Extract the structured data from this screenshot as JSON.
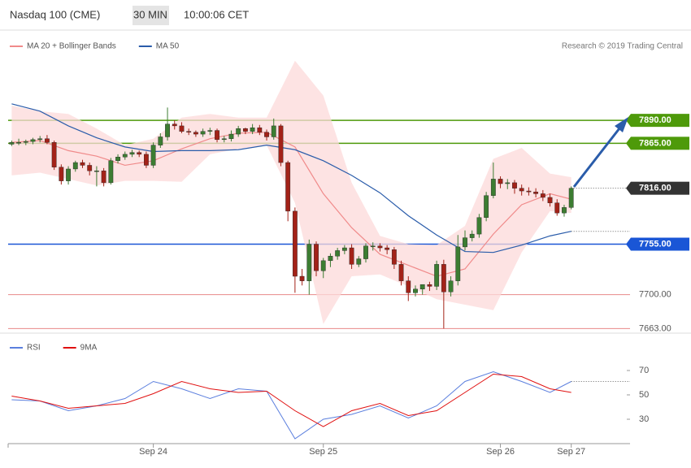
{
  "chart_data": [
    {
      "type": "candlestick",
      "title": "Nasdaq 100 (CME)",
      "timeframe": "30 MIN",
      "time": "10:00:06 CET",
      "credit": "Research © 2019 Trading Central",
      "up_color": "#3c7d32",
      "down_color": "#a32218",
      "xlim": [
        -0.5,
        87.3
      ],
      "ylim": [
        7658,
        7961
      ],
      "x": [
        0,
        1,
        2,
        3,
        4,
        5,
        6,
        7,
        8,
        9,
        10,
        11,
        12,
        13,
        14,
        15,
        16,
        17,
        18,
        19,
        20,
        21,
        22,
        23,
        24,
        25,
        26,
        27,
        28,
        29,
        30,
        31,
        32,
        33,
        34,
        35,
        36,
        37,
        38,
        39,
        40,
        41,
        42,
        43,
        44,
        45,
        46,
        47,
        48,
        49,
        50,
        51,
        52,
        53,
        54,
        55,
        56,
        57,
        58,
        59,
        60,
        61,
        62,
        63,
        64,
        65,
        66,
        67,
        68,
        69,
        70,
        71,
        72,
        73,
        74,
        75,
        76,
        77,
        78,
        79
      ],
      "open": [
        7864,
        7866,
        7866,
        7867,
        7869,
        7870,
        7866,
        7839,
        7824,
        7837,
        7844,
        7841,
        7835,
        7835,
        7822,
        7846,
        7850,
        7853,
        7855,
        7853,
        7841,
        7863,
        7872,
        7886,
        7884,
        7878,
        7877,
        7875,
        7878,
        7879,
        7869,
        7870,
        7875,
        7881,
        7878,
        7882,
        7877,
        7872,
        7884,
        7844,
        7791,
        7720,
        7715,
        7755,
        7726,
        7737,
        7742,
        7748,
        7751,
        7733,
        7739,
        7753,
        7753,
        7751,
        7749,
        7733,
        7715,
        7702,
        7706,
        7711,
        7709,
        7733,
        7703,
        7715,
        7752,
        7762,
        7766,
        7784,
        7808,
        7826,
        7821,
        7822,
        7816,
        7813,
        7812,
        7810,
        7806,
        7800,
        7789,
        7795
      ],
      "high": [
        7868,
        7870,
        7869,
        7871,
        7873,
        7874,
        7868,
        7842,
        7840,
        7846,
        7847,
        7844,
        7840,
        7838,
        7849,
        7853,
        7856,
        7858,
        7857,
        7856,
        7866,
        7876,
        7904,
        7890,
        7888,
        7881,
        7879,
        7881,
        7882,
        7881,
        7873,
        7879,
        7884,
        7882,
        7886,
        7885,
        7880,
        7892,
        7886,
        7846,
        7795,
        7728,
        7760,
        7758,
        7740,
        7745,
        7751,
        7754,
        7755,
        7742,
        7756,
        7757,
        7756,
        7754,
        7752,
        7737,
        7720,
        7710,
        7711,
        7714,
        7737,
        7738,
        7720,
        7765,
        7770,
        7770,
        7788,
        7812,
        7844,
        7829,
        7826,
        7825,
        7820,
        7817,
        7816,
        7814,
        7810,
        7804,
        7798,
        7818
      ],
      "low": [
        7862,
        7863,
        7863,
        7864,
        7866,
        7864,
        7836,
        7820,
        7820,
        7834,
        7838,
        7830,
        7818,
        7818,
        7820,
        7843,
        7847,
        7850,
        7850,
        7838,
        7838,
        7860,
        7868,
        7880,
        7876,
        7874,
        7872,
        7872,
        7874,
        7866,
        7866,
        7867,
        7872,
        7875,
        7875,
        7874,
        7868,
        7869,
        7840,
        7780,
        7702,
        7710,
        7700,
        7720,
        7718,
        7730,
        7738,
        7744,
        7728,
        7730,
        7735,
        7748,
        7747,
        7744,
        7728,
        7710,
        7693,
        7698,
        7700,
        7704,
        7705,
        7663,
        7698,
        7710,
        7748,
        7758,
        7762,
        7780,
        7805,
        7816,
        7815,
        7810,
        7808,
        7808,
        7806,
        7802,
        7796,
        7786,
        7785,
        7793
      ],
      "close": [
        7866,
        7866,
        7867,
        7869,
        7870,
        7866,
        7839,
        7824,
        7837,
        7844,
        7841,
        7835,
        7835,
        7822,
        7846,
        7850,
        7853,
        7855,
        7853,
        7841,
        7863,
        7872,
        7886,
        7884,
        7878,
        7877,
        7875,
        7878,
        7879,
        7869,
        7870,
        7875,
        7881,
        7878,
        7882,
        7877,
        7872,
        7884,
        7844,
        7791,
        7720,
        7715,
        7755,
        7726,
        7737,
        7742,
        7748,
        7751,
        7733,
        7739,
        7753,
        7753,
        7751,
        7749,
        7733,
        7715,
        7702,
        7706,
        7711,
        7709,
        7733,
        7703,
        7715,
        7752,
        7762,
        7766,
        7784,
        7808,
        7826,
        7821,
        7822,
        7816,
        7813,
        7812,
        7810,
        7806,
        7800,
        7789,
        7795,
        7816
      ],
      "series": [
        {
          "name": "MA 20 + Bollinger Bands",
          "color": "#f08a8a",
          "band_color": "#fcd9d9",
          "x": [
            0,
            4,
            8,
            12,
            16,
            20,
            24,
            28,
            32,
            36,
            40,
            44,
            48,
            52,
            56,
            60,
            64,
            68,
            72,
            76,
            79
          ],
          "values": [
            7866,
            7868,
            7857,
            7851,
            7841,
            7846,
            7859,
            7870,
            7876,
            7877,
            7861,
            7810,
            7773,
            7744,
            7732,
            7720,
            7728,
            7766,
            7798,
            7810,
            7804
          ],
          "upper": [
            7906,
            7900,
            7897,
            7881,
            7863,
            7870,
            7893,
            7897,
            7893,
            7893,
            7955,
            7917,
            7822,
            7764,
            7755,
            7754,
            7775,
            7848,
            7860,
            7832,
            7828
          ],
          "lower": [
            7830,
            7833,
            7826,
            7819,
            7824,
            7824,
            7823,
            7853,
            7859,
            7863,
            7800,
            7668,
            7720,
            7722,
            7709,
            7695,
            7689,
            7683,
            7746,
            7791,
            7789
          ]
        },
        {
          "name": "MA 50",
          "color": "#2a5caa",
          "x": [
            0,
            4,
            8,
            12,
            16,
            20,
            24,
            28,
            32,
            36,
            40,
            44,
            48,
            52,
            56,
            60,
            64,
            68,
            72,
            76,
            79
          ],
          "values": [
            7908,
            7900,
            7884,
            7871,
            7861,
            7856,
            7857,
            7857,
            7858,
            7863,
            7858,
            7846,
            7830,
            7811,
            7786,
            7765,
            7747,
            7746,
            7754,
            7764,
            7769
          ]
        }
      ],
      "levels": [
        {
          "value": 7890,
          "label": "7890.00",
          "color": "#4e9a0a",
          "style": "box"
        },
        {
          "value": 7865,
          "label": "7865.00",
          "color": "#4e9a0a",
          "style": "box"
        },
        {
          "value": 7816,
          "label": "7816.00",
          "color": "#333333",
          "style": "current"
        },
        {
          "value": 7755,
          "label": "7755.00",
          "color": "#1a56d6",
          "style": "box"
        },
        {
          "value": 7700,
          "label": "7700.00",
          "color": "#e88a8a",
          "style": "plain"
        },
        {
          "value": 7663,
          "label": "7663.00",
          "color": "#e88a8a",
          "style": "plain"
        }
      ]
    },
    {
      "type": "line",
      "xlim": [
        -0.5,
        87.3
      ],
      "ylim": [
        10,
        94
      ],
      "yticks": [
        70,
        50,
        30
      ],
      "xticks": [
        {
          "value": 20,
          "label": "Sep 24"
        },
        {
          "value": 44,
          "label": "Sep 25"
        },
        {
          "value": 69,
          "label": "Sep 26"
        },
        {
          "value": 79,
          "label": "Sep 27"
        }
      ],
      "series": [
        {
          "name": "RSI",
          "color": "#5b7fde",
          "x": [
            0,
            4,
            8,
            12,
            16,
            20,
            24,
            28,
            32,
            36,
            40,
            44,
            48,
            52,
            56,
            60,
            64,
            68,
            72,
            76,
            79
          ],
          "values": [
            46,
            45,
            37,
            41,
            47,
            61,
            55,
            47,
            55,
            53,
            14,
            30,
            34,
            41,
            31,
            41,
            61,
            69,
            61,
            52,
            61
          ]
        },
        {
          "name": "9MA",
          "color": "#e01010",
          "x": [
            0,
            4,
            8,
            12,
            16,
            20,
            24,
            28,
            32,
            36,
            40,
            44,
            48,
            52,
            56,
            60,
            64,
            68,
            72,
            76,
            79
          ],
          "values": [
            49,
            45,
            39,
            41,
            43,
            51,
            61,
            55,
            52,
            53,
            37,
            24,
            37,
            43,
            33,
            37,
            52,
            67,
            65,
            55,
            52
          ]
        }
      ]
    }
  ]
}
